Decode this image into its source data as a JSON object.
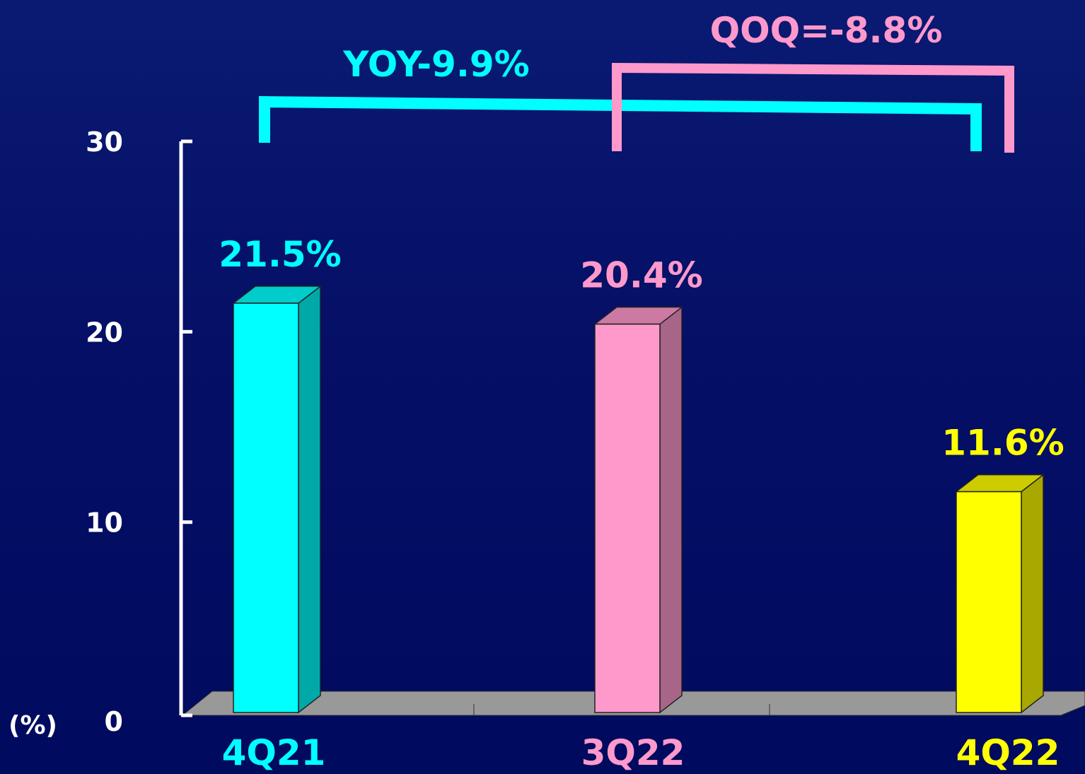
{
  "chart_data": {
    "type": "bar",
    "categories": [
      "4Q21",
      "3Q22",
      "4Q22"
    ],
    "values": [
      21.5,
      20.4,
      11.6
    ],
    "value_labels": [
      "21.5%",
      "20.4%",
      "11.6%"
    ],
    "y_unit_label": "(%)",
    "ylim": [
      0,
      30
    ],
    "yticks": [
      0,
      10,
      20,
      30
    ],
    "grid": false,
    "colors": [
      "#00ffff",
      "#ff99cc",
      "#ffff00"
    ],
    "annotations": [
      {
        "text": "YOY-9.9%",
        "from": "4Q21",
        "to": "4Q22",
        "color": "#00ffff"
      },
      {
        "text": "QOQ=-8.8%",
        "from": "3Q22",
        "to": "4Q22",
        "color": "#ff99cc"
      }
    ]
  }
}
